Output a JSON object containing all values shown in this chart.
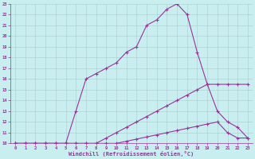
{
  "background_color": "#c8eef0",
  "grid_color": "#aacccc",
  "line_color": "#993399",
  "marker": "+",
  "xlabel": "Windchill (Refroidissement éolien,°C)",
  "xlim": [
    -0.5,
    23.5
  ],
  "ylim": [
    10,
    23
  ],
  "xticks": [
    0,
    1,
    2,
    3,
    4,
    5,
    6,
    7,
    8,
    9,
    10,
    11,
    12,
    13,
    14,
    15,
    16,
    17,
    18,
    19,
    20,
    21,
    22,
    23
  ],
  "yticks": [
    10,
    11,
    12,
    13,
    14,
    15,
    16,
    17,
    18,
    19,
    20,
    21,
    22,
    23
  ],
  "line1_x": [
    0,
    1,
    2,
    3,
    4,
    5,
    6,
    7,
    8,
    9,
    10,
    11,
    12,
    13,
    14,
    15,
    16,
    17,
    18,
    19,
    20,
    21,
    22,
    23
  ],
  "line1_y": [
    10,
    10,
    10,
    10,
    10,
    10,
    13,
    16,
    16.5,
    17,
    17.5,
    18.5,
    19,
    21,
    21.5,
    22.5,
    23,
    22,
    18.5,
    15.5,
    15.5,
    15.5,
    15.5,
    15.5
  ],
  "line2_x": [
    0,
    1,
    2,
    3,
    4,
    5,
    6,
    7,
    8,
    9,
    10,
    11,
    12,
    13,
    14,
    15,
    16,
    17,
    18,
    19,
    20,
    21,
    22,
    23
  ],
  "line2_y": [
    10,
    10,
    10,
    10,
    10,
    10,
    10,
    10,
    10,
    10.5,
    11,
    11.5,
    12,
    12.5,
    13,
    13.5,
    14,
    14.5,
    15,
    15.5,
    13,
    12,
    11.5,
    10.5
  ],
  "line3_x": [
    0,
    1,
    2,
    3,
    4,
    5,
    6,
    7,
    8,
    9,
    10,
    11,
    12,
    13,
    14,
    15,
    16,
    17,
    18,
    19,
    20,
    21,
    22,
    23
  ],
  "line3_y": [
    10,
    10,
    10,
    10,
    10,
    10,
    10,
    10,
    10,
    10,
    10,
    10.2,
    10.4,
    10.6,
    10.8,
    11,
    11.2,
    11.4,
    11.6,
    11.8,
    12,
    11,
    10.5,
    10.5
  ]
}
